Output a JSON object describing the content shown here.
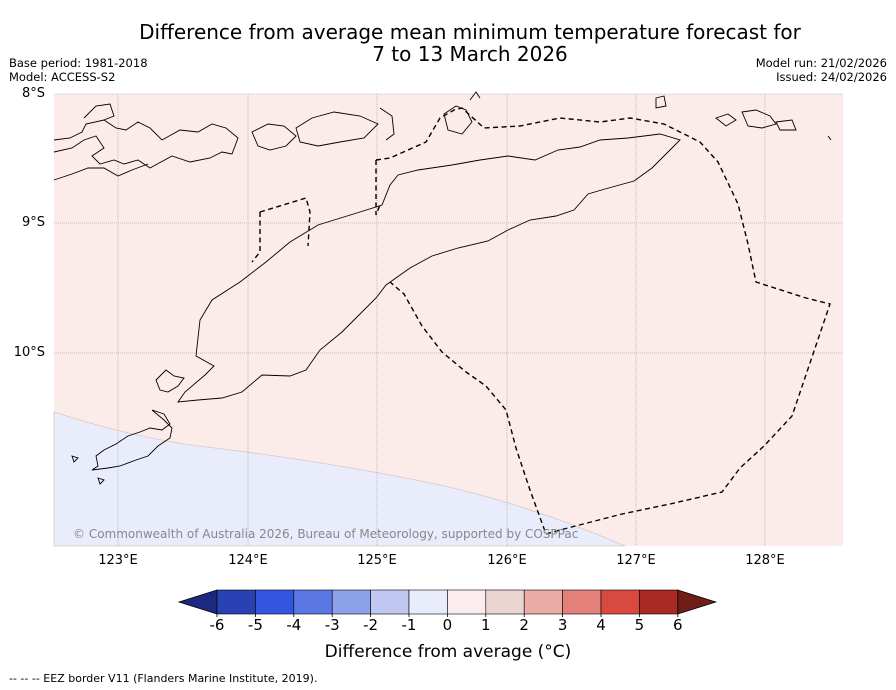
{
  "title": {
    "line1": "Difference from average mean minimum temperature forecast for",
    "line2": "7 to 13 March 2026"
  },
  "meta": {
    "base_period": "Base period: 1981-2018",
    "model": "Model: ACCESS-S2",
    "model_run": "Model run: 21/02/2026",
    "issued": "Issued: 24/02/2026"
  },
  "map": {
    "latitude_labels": [
      "8°S",
      "9°S",
      "10°S"
    ],
    "longitude_labels": [
      "123°E",
      "124°E",
      "125°E",
      "126°E",
      "127°E",
      "128°E"
    ],
    "copyright": "© Commonwealth of Australia 2026, Bureau of Meteorology, supported by COSPPac",
    "regions": [
      {
        "name": "northern area",
        "anomaly_bin": "0 to 1",
        "color": "#fbebe9"
      },
      {
        "name": "southwest corner",
        "anomaly_bin": "-1 to 0",
        "color": "#e9ecfb"
      }
    ]
  },
  "colorbar": {
    "title": "Difference from average ($^\\circ$C)",
    "title_display": "Difference from average (°C)",
    "tick_labels": [
      "-6",
      "-5",
      "-4",
      "-3",
      "-2",
      "-1",
      "0",
      "1",
      "2",
      "3",
      "4",
      "5",
      "6"
    ],
    "colors": [
      "#1b2a80",
      "#2a41b3",
      "#3355e0",
      "#5a77e4",
      "#8da0ea",
      "#c0c8f2",
      "#e9ecfb",
      "#fbeded",
      "#ebd5d3",
      "#ebaca6",
      "#e3807a",
      "#d84a40",
      "#a82a22",
      "#6e1d17"
    ]
  },
  "footnote": "--  --  -- EEZ border V11 (Flanders Marine Institute, 2019)."
}
